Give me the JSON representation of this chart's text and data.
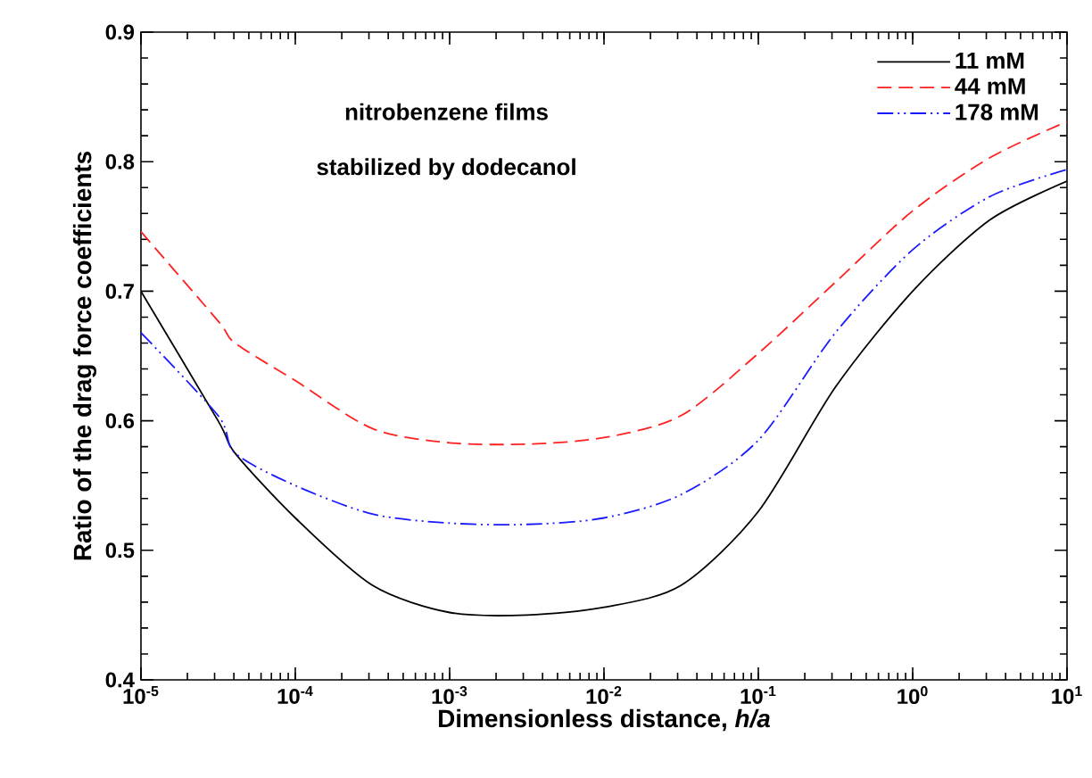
{
  "chart_data": {
    "type": "line",
    "xlabel": "Dimensionless distance, *h/a*",
    "ylabel": "Ratio of the drag force coefficients",
    "annotations": [
      "nitrobenzene films",
      "stabilized by dodecanol"
    ],
    "x": [
      1e-05,
      3.16e-05,
      4.07e-05,
      0.0001,
      0.000316,
      0.001,
      0.00316,
      0.01,
      0.0316,
      0.1,
      0.316,
      1,
      3.16,
      10
    ],
    "series": [
      {
        "name": "11 mM",
        "color": "#000000",
        "line_style": "solid",
        "values": [
          0.7,
          0.6,
          0.575,
          0.525,
          0.473,
          0.452,
          0.45,
          0.456,
          0.473,
          0.53,
          0.626,
          0.7,
          0.755,
          0.785
        ]
      },
      {
        "name": "44 mM",
        "color": "#ff2020",
        "line_style": "dashed",
        "values": [
          0.746,
          0.677,
          0.66,
          0.631,
          0.594,
          0.583,
          0.582,
          0.587,
          0.604,
          0.652,
          0.707,
          0.762,
          0.803,
          0.831
        ]
      },
      {
        "name": "178 mM",
        "color": "#1a1aff",
        "line_style": "dashdotdotted",
        "values": [
          0.668,
          0.604,
          0.575,
          0.55,
          0.528,
          0.521,
          0.52,
          0.525,
          0.543,
          0.585,
          0.668,
          0.732,
          0.773,
          0.794
        ]
      }
    ],
    "log": "x",
    "xlim": [
      1e-05,
      10
    ],
    "xticks": [
      {
        "value": 1e-05,
        "label": "10$^{-5}$"
      },
      {
        "value": 0.0001,
        "label": "10$^{-4}$"
      },
      {
        "value": 0.001,
        "label": "10$^{-3}$"
      },
      {
        "value": 0.01,
        "label": "10$^{-2}$"
      },
      {
        "value": 0.1,
        "label": "10$^{-1}$"
      },
      {
        "value": 1,
        "label": "10$^{0}$"
      },
      {
        "value": 10,
        "label": "10$^{1}$"
      }
    ],
    "ylim": [
      0.4,
      0.9
    ],
    "yticks": [
      0.4,
      0.5,
      0.6,
      0.7,
      0.8,
      0.9
    ],
    "grid": false,
    "legend": "top right",
    "marker": "none"
  }
}
